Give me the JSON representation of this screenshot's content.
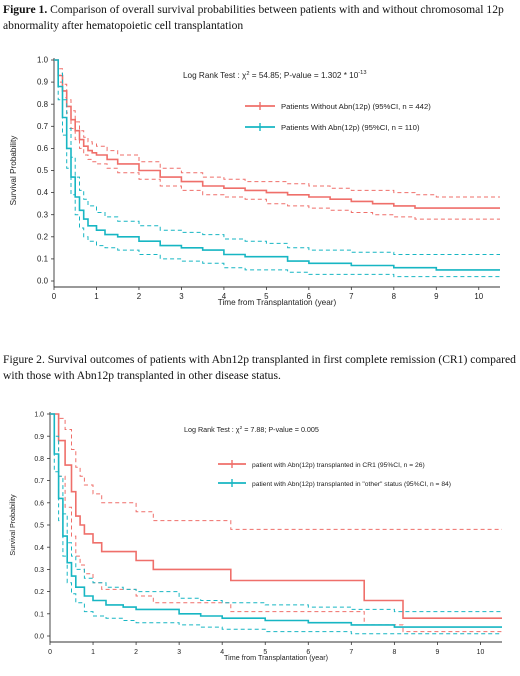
{
  "figure1": {
    "caption_label": "Figure 1.",
    "caption_text": " Comparison of overall survival probabilities between patients with and without chromosomal 12p abnormality after hematopoietic cell transplantation"
  },
  "figure2": {
    "caption_text": "Figure 2.  Survival outcomes of patients with Abn12p transplanted in first complete remission (CR1) compared with those with Abn12p transplanted in other disease status."
  },
  "chart_data": [
    {
      "type": "line",
      "subtype": "kaplan-meier",
      "title": "",
      "xlabel": "Time from Transplantation (year)",
      "ylabel": "Survival Probability",
      "xlim": [
        0,
        10.5
      ],
      "ylim": [
        0,
        1.0
      ],
      "xticks": [
        "0",
        "1",
        "2",
        "3",
        "4",
        "5",
        "6",
        "7",
        "8",
        "9",
        "10"
      ],
      "yticks": [
        "0.0",
        "0.1",
        "0.2",
        "0.3",
        "0.4",
        "0.5",
        "0.6",
        "0.7",
        "0.8",
        "0.9",
        "1.0"
      ],
      "grid": false,
      "legend_position": "top-right",
      "annotation": {
        "prefix": "Log Rank Test : ",
        "chi": "χ",
        "sq": "2",
        "mid": " = 54.85; P-value = 1.302  * 10",
        "exp": "-13"
      },
      "series": [
        {
          "name": "Patients Without Abn(12p) (95%CI, n = 442)",
          "color": "#ef6f6a",
          "x": [
            0,
            0.1,
            0.2,
            0.3,
            0.4,
            0.5,
            0.6,
            0.7,
            0.8,
            0.9,
            1.0,
            1.25,
            1.5,
            2.0,
            2.5,
            3.0,
            3.5,
            4.0,
            4.5,
            5.0,
            5.5,
            6.0,
            6.5,
            7.0,
            7.5,
            8.0,
            8.5,
            9.0,
            9.5,
            10.0,
            10.5
          ],
          "y": [
            1.0,
            0.93,
            0.86,
            0.79,
            0.73,
            0.68,
            0.64,
            0.61,
            0.59,
            0.58,
            0.57,
            0.55,
            0.53,
            0.5,
            0.47,
            0.45,
            0.43,
            0.42,
            0.41,
            0.4,
            0.39,
            0.38,
            0.37,
            0.36,
            0.35,
            0.34,
            0.33,
            0.33,
            0.33,
            0.33,
            0.33
          ],
          "ci_lower": [
            1.0,
            0.9,
            0.83,
            0.76,
            0.69,
            0.64,
            0.6,
            0.57,
            0.55,
            0.54,
            0.53,
            0.51,
            0.49,
            0.46,
            0.43,
            0.41,
            0.39,
            0.38,
            0.37,
            0.35,
            0.34,
            0.33,
            0.32,
            0.31,
            0.3,
            0.29,
            0.28,
            0.28,
            0.28,
            0.28,
            0.28
          ],
          "ci_upper": [
            1.0,
            0.96,
            0.89,
            0.82,
            0.77,
            0.72,
            0.68,
            0.65,
            0.63,
            0.62,
            0.61,
            0.59,
            0.57,
            0.54,
            0.51,
            0.49,
            0.47,
            0.46,
            0.45,
            0.45,
            0.44,
            0.43,
            0.42,
            0.41,
            0.41,
            0.4,
            0.39,
            0.38,
            0.38,
            0.38,
            0.38
          ]
        },
        {
          "name": "Patients With Abn(12p) (95%CI, n = 110)",
          "color": "#17b6c3",
          "x": [
            0,
            0.1,
            0.2,
            0.3,
            0.4,
            0.5,
            0.6,
            0.7,
            0.8,
            1.0,
            1.2,
            1.5,
            2.0,
            2.5,
            3.0,
            3.5,
            4.0,
            4.5,
            5.0,
            5.5,
            6.0,
            7.0,
            8.0,
            9.0,
            10.0,
            10.5
          ],
          "y": [
            1.0,
            0.88,
            0.74,
            0.6,
            0.47,
            0.38,
            0.32,
            0.28,
            0.25,
            0.23,
            0.21,
            0.2,
            0.18,
            0.16,
            0.15,
            0.14,
            0.12,
            0.11,
            0.11,
            0.09,
            0.08,
            0.07,
            0.06,
            0.05,
            0.05,
            0.05
          ],
          "ci_lower": [
            1.0,
            0.82,
            0.66,
            0.51,
            0.39,
            0.3,
            0.24,
            0.2,
            0.18,
            0.16,
            0.15,
            0.14,
            0.12,
            0.1,
            0.09,
            0.08,
            0.06,
            0.05,
            0.05,
            0.04,
            0.03,
            0.03,
            0.02,
            0.02,
            0.02,
            0.02
          ],
          "ci_upper": [
            1.0,
            0.94,
            0.82,
            0.69,
            0.56,
            0.47,
            0.41,
            0.37,
            0.34,
            0.31,
            0.29,
            0.27,
            0.25,
            0.23,
            0.22,
            0.21,
            0.19,
            0.18,
            0.17,
            0.15,
            0.14,
            0.13,
            0.12,
            0.12,
            0.12,
            0.12
          ]
        }
      ]
    },
    {
      "type": "line",
      "subtype": "kaplan-meier",
      "title": "",
      "xlabel": "Time from Transplantation (year)",
      "ylabel": "Survival Probability",
      "xlim": [
        0,
        10.5
      ],
      "ylim": [
        0,
        1.0
      ],
      "xticks": [
        "0",
        "1",
        "2",
        "3",
        "4",
        "5",
        "6",
        "7",
        "8",
        "9",
        "10"
      ],
      "yticks": [
        "0.0",
        "0.1",
        "0.2",
        "0.3",
        "0.4",
        "0.5",
        "0.6",
        "0.7",
        "0.8",
        "0.9",
        "1.0"
      ],
      "grid": false,
      "legend_position": "top-right",
      "annotation": {
        "prefix": "Log Rank Test :  ",
        "chi": "χ",
        "sq": "2",
        "mid": " = 7.88; P-value = 0.005",
        "exp": ""
      },
      "series": [
        {
          "name": "patient with Abn(12p) transplanted in CR1 (95%CI, n = 26)",
          "color": "#ef6f6a",
          "x": [
            0,
            0.2,
            0.35,
            0.5,
            0.6,
            0.7,
            0.8,
            1.0,
            1.2,
            1.5,
            2.0,
            2.4,
            3.0,
            4.0,
            4.2,
            5.0,
            6.0,
            7.3,
            8.2,
            9.0,
            10.5
          ],
          "y": [
            1.0,
            0.88,
            0.77,
            0.65,
            0.54,
            0.5,
            0.46,
            0.42,
            0.38,
            0.38,
            0.34,
            0.3,
            0.3,
            0.3,
            0.25,
            0.25,
            0.25,
            0.16,
            0.08,
            0.08,
            0.08
          ],
          "ci_lower": [
            1.0,
            0.72,
            0.58,
            0.45,
            0.36,
            0.32,
            0.28,
            0.24,
            0.21,
            0.21,
            0.18,
            0.15,
            0.15,
            0.15,
            0.11,
            0.11,
            0.11,
            0.05,
            0.02,
            0.02,
            0.02
          ],
          "ci_upper": [
            1.0,
            0.98,
            0.93,
            0.84,
            0.76,
            0.72,
            0.68,
            0.64,
            0.6,
            0.6,
            0.56,
            0.52,
            0.52,
            0.52,
            0.48,
            0.48,
            0.48,
            0.48,
            0.48,
            0.48,
            0.48
          ]
        },
        {
          "name": "patient with Abn(12p) transplanted in \"other\" status (95%CI, n = 84)",
          "color": "#17b6c3",
          "x": [
            0,
            0.1,
            0.2,
            0.3,
            0.4,
            0.5,
            0.6,
            0.8,
            1.0,
            1.3,
            1.7,
            2.0,
            3.0,
            3.5,
            4.0,
            5.0,
            6.0,
            7.0,
            8.0,
            9.0,
            10.5
          ],
          "y": [
            1.0,
            0.82,
            0.62,
            0.45,
            0.33,
            0.27,
            0.22,
            0.18,
            0.16,
            0.14,
            0.13,
            0.12,
            0.1,
            0.09,
            0.08,
            0.07,
            0.06,
            0.05,
            0.04,
            0.04,
            0.04
          ],
          "ci_lower": [
            1.0,
            0.74,
            0.52,
            0.36,
            0.24,
            0.19,
            0.15,
            0.11,
            0.09,
            0.08,
            0.07,
            0.06,
            0.05,
            0.04,
            0.03,
            0.02,
            0.02,
            0.01,
            0.01,
            0.01,
            0.01
          ],
          "ci_upper": [
            1.0,
            0.9,
            0.72,
            0.55,
            0.42,
            0.36,
            0.3,
            0.26,
            0.24,
            0.22,
            0.21,
            0.2,
            0.17,
            0.16,
            0.15,
            0.14,
            0.13,
            0.12,
            0.11,
            0.11,
            0.11
          ]
        }
      ]
    }
  ]
}
